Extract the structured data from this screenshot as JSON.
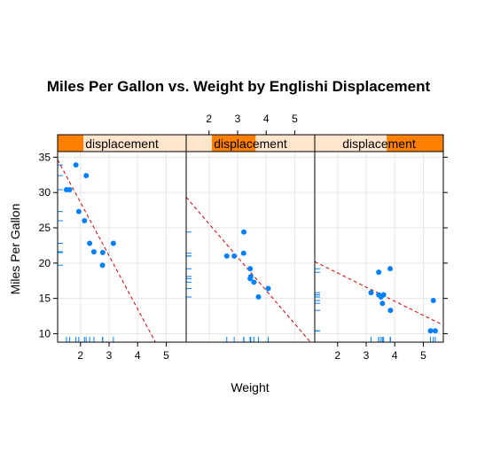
{
  "chart_data": {
    "type": "scatter",
    "title": "Miles Per Gallon vs. Weight by Englishi Displacement",
    "xlabel": "Weight",
    "ylabel": "Miles Per Gallon",
    "strip_label": "displacement",
    "xlim": [
      1.2,
      5.7
    ],
    "ylim": [
      8.8,
      35.8
    ],
    "x_ticks": [
      2,
      3,
      4,
      5
    ],
    "y_ticks": [
      10,
      15,
      20,
      25,
      30,
      35
    ],
    "colors": {
      "points": "#0080ff",
      "fit": "#cc0000",
      "strip_bg": "#ffe5cc",
      "strip_level": "#ff7f00",
      "grid": "#e6e6e6",
      "rug": "#0080ff"
    },
    "panels": [
      {
        "strip_level": [
          0.0,
          0.2
        ],
        "fit": {
          "slope": -7.55,
          "intercept": 43.7
        },
        "points": [
          {
            "x": 1.51,
            "y": 30.4
          },
          {
            "x": 1.62,
            "y": 30.4
          },
          {
            "x": 1.84,
            "y": 33.9
          },
          {
            "x": 1.94,
            "y": 27.3
          },
          {
            "x": 2.14,
            "y": 26.0
          },
          {
            "x": 2.2,
            "y": 32.4
          },
          {
            "x": 2.32,
            "y": 22.8
          },
          {
            "x": 2.47,
            "y": 21.6
          },
          {
            "x": 2.78,
            "y": 21.5
          },
          {
            "x": 2.77,
            "y": 19.7
          },
          {
            "x": 3.15,
            "y": 22.8
          }
        ]
      },
      {
        "strip_level": [
          0.2,
          0.54
        ],
        "fit": {
          "slope": -4.72,
          "intercept": 35.0
        },
        "points": [
          {
            "x": 2.62,
            "y": 21.0
          },
          {
            "x": 2.88,
            "y": 21.0
          },
          {
            "x": 3.22,
            "y": 24.4
          },
          {
            "x": 3.21,
            "y": 21.4
          },
          {
            "x": 3.44,
            "y": 19.2
          },
          {
            "x": 3.46,
            "y": 18.1
          },
          {
            "x": 3.44,
            "y": 17.8
          },
          {
            "x": 3.57,
            "y": 17.3
          },
          {
            "x": 3.73,
            "y": 15.2
          },
          {
            "x": 4.07,
            "y": 16.4
          }
        ]
      },
      {
        "strip_level": [
          0.56,
          1.0
        ],
        "fit": {
          "slope": -2.0,
          "intercept": 22.6
        },
        "points": [
          {
            "x": 3.17,
            "y": 15.8
          },
          {
            "x": 3.44,
            "y": 18.7
          },
          {
            "x": 3.44,
            "y": 15.5
          },
          {
            "x": 3.52,
            "y": 15.2
          },
          {
            "x": 3.57,
            "y": 14.3
          },
          {
            "x": 3.84,
            "y": 19.2
          },
          {
            "x": 3.85,
            "y": 13.3
          },
          {
            "x": 5.25,
            "y": 10.4
          },
          {
            "x": 5.42,
            "y": 10.4
          },
          {
            "x": 5.35,
            "y": 14.7
          },
          {
            "x": 3.61,
            "y": 15.5
          }
        ]
      }
    ]
  }
}
